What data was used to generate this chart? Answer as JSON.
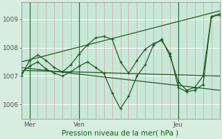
{
  "title": "Pression niveau de la mer( hPa )",
  "bg_color": "#d6ede0",
  "plot_bg_color": "#c8e8d8",
  "line_color": "#1e5c1e",
  "grid_color_v": "#e0a0a0",
  "grid_color_h": "#ffffff",
  "ylim": [
    1005.5,
    1009.6
  ],
  "xlim": [
    0,
    48
  ],
  "xtick_positions": [
    2,
    14,
    38
  ],
  "xtick_labels": [
    "Mer",
    "Ven",
    "Jeu"
  ],
  "ytick_positions": [
    1006,
    1007,
    1008,
    1009
  ],
  "day_vlines": [
    2,
    14,
    38
  ],
  "series": [
    {
      "x": [
        0,
        2,
        4,
        6,
        8,
        10,
        12,
        14,
        16,
        18,
        20,
        22,
        24,
        26,
        28,
        30,
        32,
        34,
        36,
        38,
        40,
        42,
        44,
        46,
        48
      ],
      "y": [
        1007.0,
        1007.55,
        1007.75,
        1007.55,
        1007.3,
        1007.15,
        1007.4,
        1007.78,
        1008.1,
        1008.35,
        1008.4,
        1008.3,
        1007.5,
        1007.1,
        1007.55,
        1007.95,
        1008.15,
        1008.25,
        1007.8,
        1006.6,
        1006.45,
        1006.5,
        1006.7,
        1009.1,
        1009.15
      ],
      "marker": true
    },
    {
      "x": [
        0,
        2,
        4,
        6,
        8,
        10,
        12,
        14,
        16,
        18,
        20,
        22,
        24,
        26,
        28,
        30,
        32,
        34,
        36,
        38,
        40,
        42,
        44,
        46,
        48
      ],
      "y": [
        1007.1,
        1007.35,
        1007.5,
        1007.25,
        1007.1,
        1007.0,
        1007.15,
        1007.35,
        1007.5,
        1007.3,
        1007.1,
        1006.4,
        1005.85,
        1006.3,
        1007.0,
        1007.4,
        1008.1,
        1008.3,
        1007.7,
        1006.8,
        1006.5,
        1006.6,
        1007.0,
        1009.1,
        1009.2
      ],
      "marker": true
    },
    {
      "x": [
        0,
        48
      ],
      "y": [
        1007.5,
        1009.3
      ],
      "marker": false
    },
    {
      "x": [
        0,
        48
      ],
      "y": [
        1007.3,
        1006.5
      ],
      "marker": false
    },
    {
      "x": [
        0,
        48
      ],
      "y": [
        1007.2,
        1007.0
      ],
      "marker": false
    }
  ]
}
